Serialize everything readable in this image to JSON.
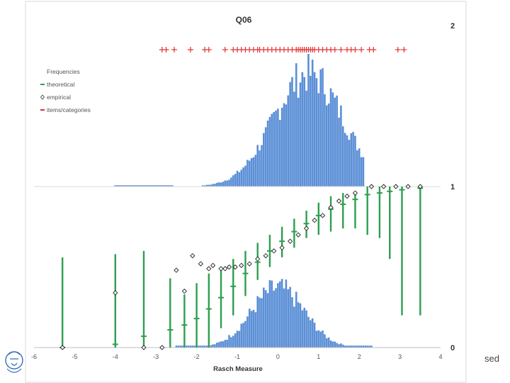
{
  "chart_data": {
    "type": "composite",
    "title": "Q06",
    "xlabel": "Rasch Measure",
    "xlim": [
      -6,
      4
    ],
    "x_ticks": [
      -6,
      -5,
      -4,
      -3,
      -2,
      -1,
      0,
      1,
      2,
      3,
      4
    ],
    "right_axis_ticks": [
      {
        "value": 2,
        "label": "2"
      },
      {
        "value": 1,
        "label": "1"
      },
      {
        "value": 0,
        "label": "0"
      }
    ],
    "legend": {
      "position": "top-left",
      "entries": [
        {
          "name": "Frequencies",
          "color": "#5b8fd6",
          "marker": "none"
        },
        {
          "name": "theoretical",
          "color": "#2e9e4f",
          "marker": "line"
        },
        {
          "name": "empirical",
          "color": "#222222",
          "marker": "diamond"
        },
        {
          "name": "items/categories",
          "color": "#e03030",
          "marker": "line"
        }
      ]
    },
    "items_categories": [
      -2.85,
      -2.75,
      -2.55,
      -2.15,
      -1.8,
      -1.7,
      -1.3,
      -1.1,
      -1.0,
      -0.9,
      -0.8,
      -0.7,
      -0.6,
      -0.5,
      -0.45,
      -0.35,
      -0.25,
      -0.15,
      -0.05,
      0.05,
      0.15,
      0.25,
      0.35,
      0.45,
      0.5,
      0.55,
      0.6,
      0.65,
      0.7,
      0.75,
      0.8,
      0.85,
      0.9,
      1.0,
      1.1,
      1.2,
      1.3,
      1.4,
      1.55,
      1.7,
      1.8,
      1.9,
      2.05,
      2.25,
      2.35,
      2.95,
      3.1
    ],
    "upper_freq_peak": 0.7,
    "lower_freq_peak": 0.37,
    "frequencies_note": "relative heights read approximately from histogram",
    "theoretical": [
      {
        "x": -5.3,
        "y": 0.0,
        "lo": 0.0,
        "hi": 0.56
      },
      {
        "x": -4.0,
        "y": 0.02,
        "lo": 0.0,
        "hi": 0.58
      },
      {
        "x": -3.3,
        "y": 0.07,
        "lo": 0.0,
        "hi": 0.6
      },
      {
        "x": -2.65,
        "y": 0.11,
        "lo": 0.0,
        "hi": 0.43
      },
      {
        "x": -2.3,
        "y": 0.14,
        "lo": 0.0,
        "hi": 0.33
      },
      {
        "x": -2.0,
        "y": 0.18,
        "lo": 0.0,
        "hi": 0.4
      },
      {
        "x": -1.7,
        "y": 0.24,
        "lo": 0.0,
        "hi": 0.46
      },
      {
        "x": -1.4,
        "y": 0.31,
        "lo": 0.12,
        "hi": 0.5
      },
      {
        "x": -1.1,
        "y": 0.38,
        "lo": 0.2,
        "hi": 0.55
      },
      {
        "x": -0.8,
        "y": 0.46,
        "lo": 0.32,
        "hi": 0.6
      },
      {
        "x": -0.5,
        "y": 0.53,
        "lo": 0.42,
        "hi": 0.65
      },
      {
        "x": -0.2,
        "y": 0.6,
        "lo": 0.5,
        "hi": 0.7
      },
      {
        "x": 0.1,
        "y": 0.66,
        "lo": 0.56,
        "hi": 0.75
      },
      {
        "x": 0.4,
        "y": 0.72,
        "lo": 0.62,
        "hi": 0.8
      },
      {
        "x": 0.7,
        "y": 0.77,
        "lo": 0.68,
        "hi": 0.85
      },
      {
        "x": 1.0,
        "y": 0.82,
        "lo": 0.7,
        "hi": 0.9
      },
      {
        "x": 1.3,
        "y": 0.86,
        "lo": 0.72,
        "hi": 0.94
      },
      {
        "x": 1.6,
        "y": 0.89,
        "lo": 0.74,
        "hi": 0.96
      },
      {
        "x": 1.9,
        "y": 0.92,
        "lo": 0.74,
        "hi": 0.97
      },
      {
        "x": 2.2,
        "y": 0.95,
        "lo": 0.7,
        "hi": 1.0
      },
      {
        "x": 2.5,
        "y": 0.96,
        "lo": 0.68,
        "hi": 1.0
      },
      {
        "x": 2.75,
        "y": 0.97,
        "lo": 0.55,
        "hi": 1.0
      },
      {
        "x": 3.05,
        "y": 0.98,
        "lo": 0.2,
        "hi": 1.0
      },
      {
        "x": 3.5,
        "y": 0.99,
        "lo": 0.2,
        "hi": 1.0
      }
    ],
    "empirical": [
      {
        "x": -5.3,
        "y": 0.0
      },
      {
        "x": -4.0,
        "y": 0.34
      },
      {
        "x": -3.3,
        "y": 0.0
      },
      {
        "x": -2.85,
        "y": 0.0
      },
      {
        "x": -2.3,
        "y": 0.35
      },
      {
        "x": -2.5,
        "y": 0.48
      },
      {
        "x": -2.1,
        "y": 0.57
      },
      {
        "x": -1.9,
        "y": 0.52
      },
      {
        "x": -1.7,
        "y": 0.49
      },
      {
        "x": -1.6,
        "y": 0.51
      },
      {
        "x": -1.4,
        "y": 0.49
      },
      {
        "x": -1.3,
        "y": 0.49
      },
      {
        "x": -1.2,
        "y": 0.5
      },
      {
        "x": -1.05,
        "y": 0.5
      },
      {
        "x": -0.9,
        "y": 0.51
      },
      {
        "x": -0.7,
        "y": 0.52
      },
      {
        "x": -0.5,
        "y": 0.55
      },
      {
        "x": -0.3,
        "y": 0.57
      },
      {
        "x": -0.1,
        "y": 0.6
      },
      {
        "x": 0.1,
        "y": 0.62
      },
      {
        "x": 0.3,
        "y": 0.66
      },
      {
        "x": 0.5,
        "y": 0.7
      },
      {
        "x": 0.7,
        "y": 0.74
      },
      {
        "x": 0.9,
        "y": 0.79
      },
      {
        "x": 1.1,
        "y": 0.82
      },
      {
        "x": 1.3,
        "y": 0.87
      },
      {
        "x": 1.5,
        "y": 0.91
      },
      {
        "x": 1.7,
        "y": 0.94
      },
      {
        "x": 1.9,
        "y": 0.96
      },
      {
        "x": 2.3,
        "y": 1.0
      },
      {
        "x": 2.6,
        "y": 1.0
      },
      {
        "x": 2.9,
        "y": 1.0
      },
      {
        "x": 3.2,
        "y": 1.0
      },
      {
        "x": 3.5,
        "y": 1.0
      }
    ]
  },
  "slide_text": "sed"
}
